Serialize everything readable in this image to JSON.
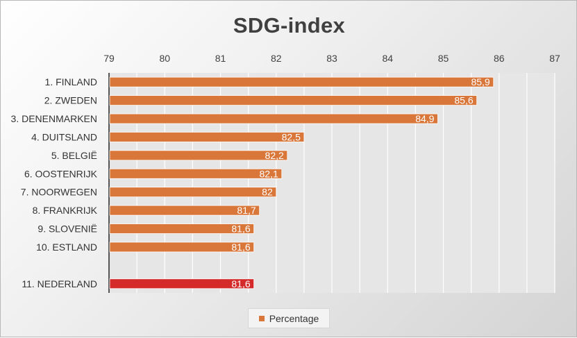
{
  "chart_data": {
    "type": "bar",
    "orientation": "horizontal",
    "title": "SDG-index",
    "xlim": [
      79,
      87
    ],
    "x_ticks": [
      "79",
      "80",
      "81",
      "82",
      "83",
      "84",
      "85",
      "86",
      "87"
    ],
    "x_axis_position": "top",
    "grid": true,
    "legend_position": "bottom",
    "series": [
      {
        "name": "Percentage",
        "color": "#D9773A",
        "highlight_color": "#D42A2A",
        "categories": [
          "1. FINLAND",
          "2. ZWEDEN",
          "3. DENENMARKEN",
          "4. DUITSLAND",
          "5. BELGIË",
          "6. OOSTENRIJK",
          "7. NOORWEGEN",
          "8. FRANKRIJK",
          "9. SLOVENIË",
          "10. ESTLAND",
          "",
          "11. NEDERLAND"
        ],
        "values": [
          85.9,
          85.6,
          84.9,
          82.5,
          82.2,
          82.1,
          82.0,
          81.7,
          81.6,
          81.6,
          null,
          81.6
        ],
        "data_labels": [
          "85,9",
          "85,6",
          "84,9",
          "82,5",
          "82,2",
          "82,1",
          "82",
          "81,7",
          "81,6",
          "81,6",
          "",
          "81,6"
        ],
        "highlighted": [
          false,
          false,
          false,
          false,
          false,
          false,
          false,
          false,
          false,
          false,
          false,
          true
        ]
      }
    ]
  }
}
